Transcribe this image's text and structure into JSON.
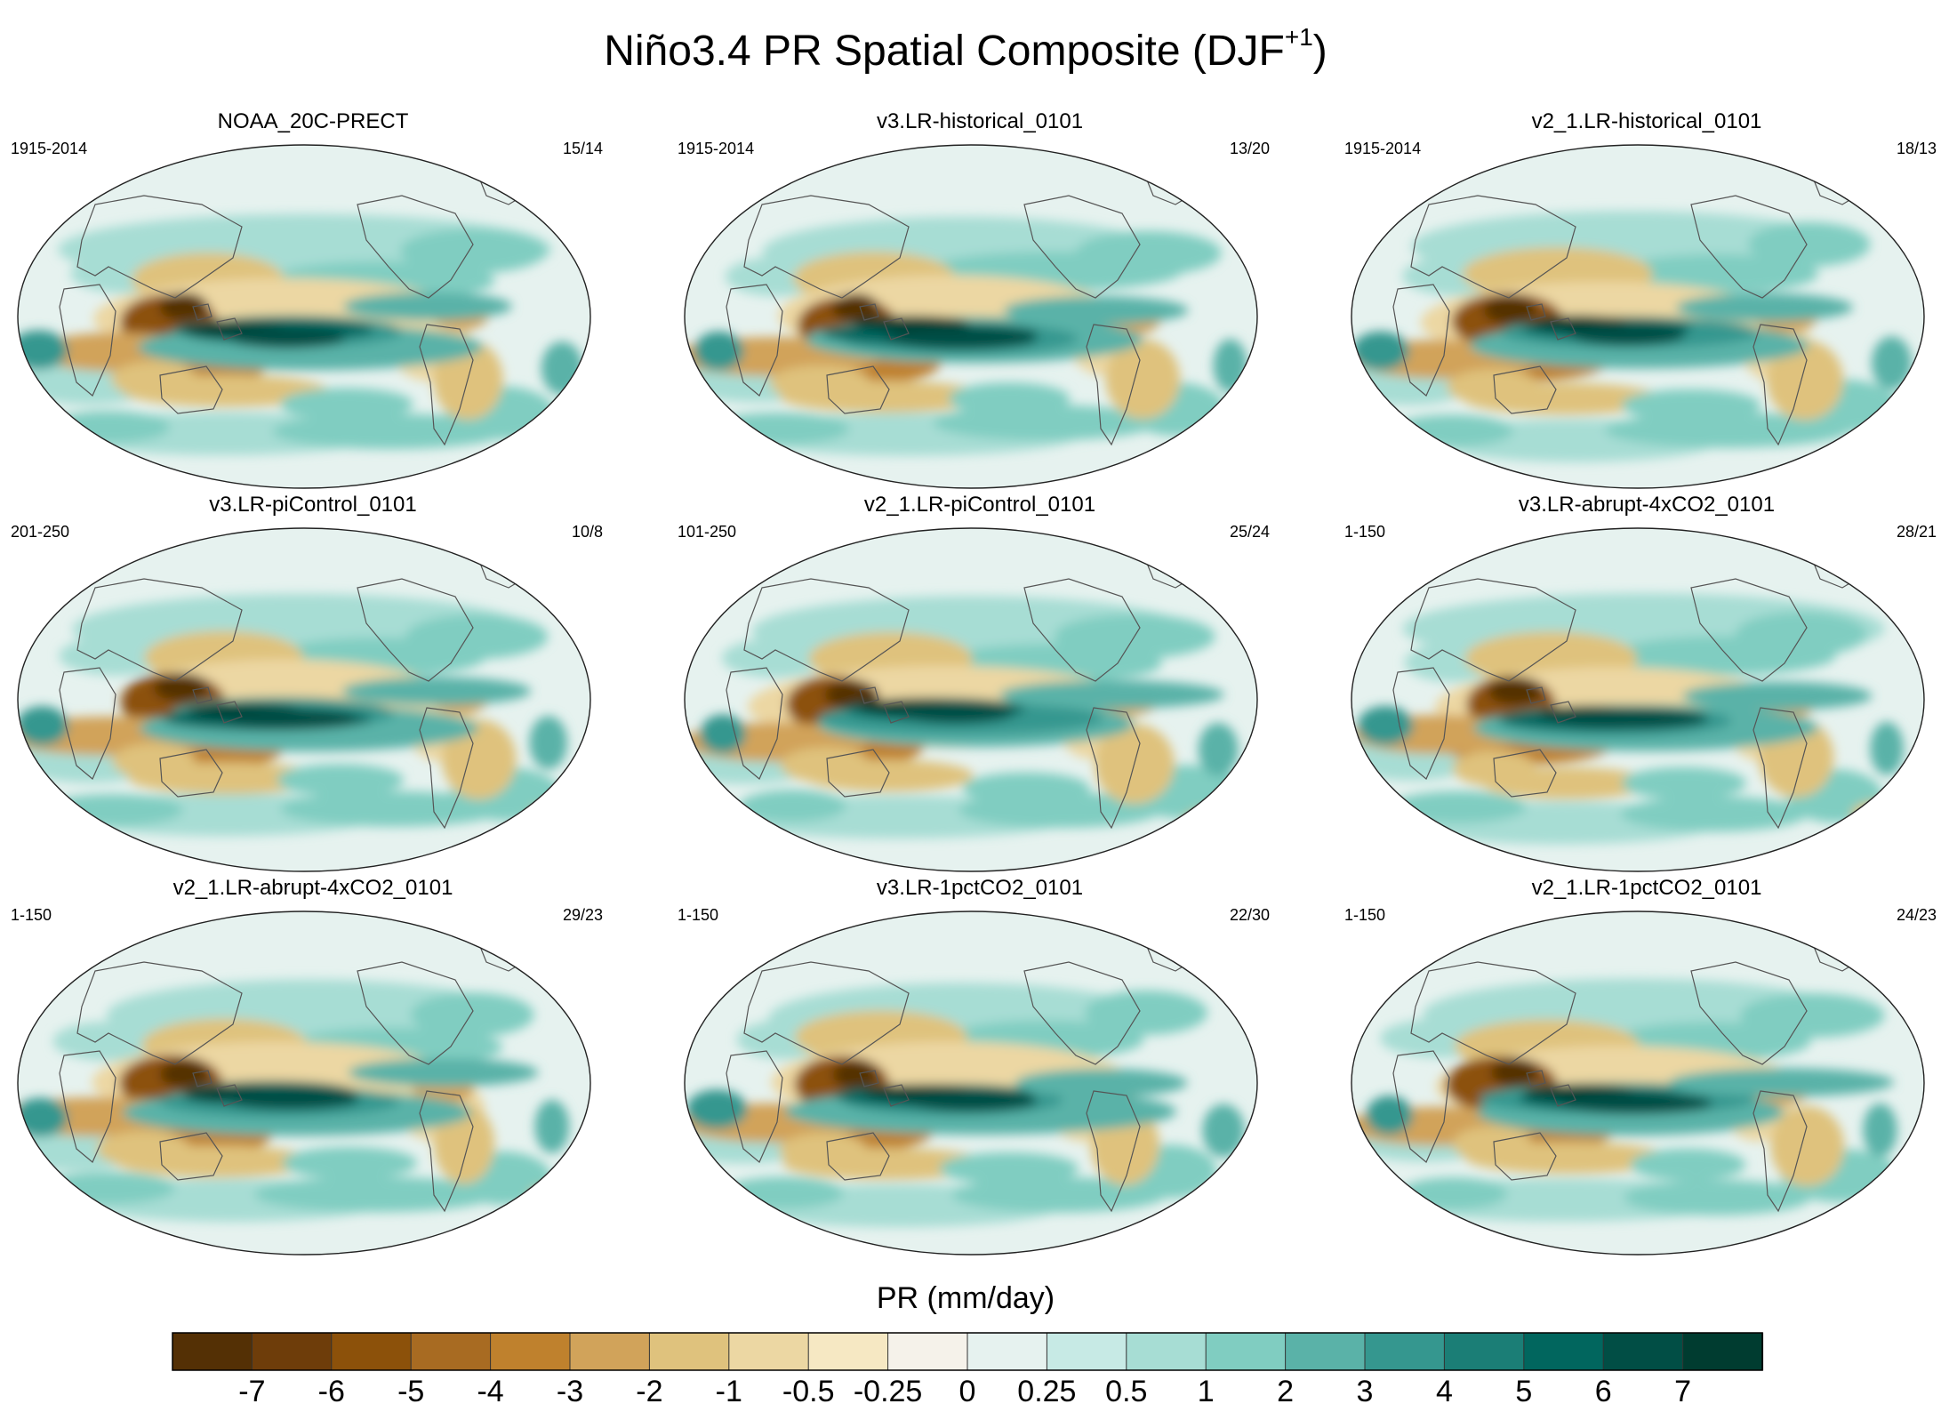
{
  "figure": {
    "title": "Niño3.4 PR Spatial Composite (DJF",
    "title_sup": "+1",
    "title_close": ")"
  },
  "colorbar": {
    "title": "PR (mm/day)",
    "labels": [
      "-7",
      "-6",
      "-5",
      "-4",
      "-3",
      "-2",
      "-1",
      "-0.5",
      "-0.25",
      "0",
      "0.25",
      "0.5",
      "1",
      "2",
      "3",
      "4",
      "5",
      "6",
      "7"
    ],
    "colors": [
      "#543005",
      "#6e3d0a",
      "#8c510a",
      "#a86b22",
      "#bf812d",
      "#d1a35a",
      "#dfc27d",
      "#ecd7a3",
      "#f6e8c3",
      "#f5f2ea",
      "#e6f2ef",
      "#c7eae5",
      "#a7ddd4",
      "#80cdc1",
      "#5ab2a8",
      "#35978f",
      "#1b7e76",
      "#01665e",
      "#014e45",
      "#003c30"
    ]
  },
  "chart_data": [
    {
      "type": "heatmap",
      "title": "NOAA_20C-PRECT",
      "period": "1915-2014",
      "count": "15/14"
    },
    {
      "type": "heatmap",
      "title": "v3.LR-historical_0101",
      "period": "1915-2014",
      "count": "13/20"
    },
    {
      "type": "heatmap",
      "title": "v2_1.LR-historical_0101",
      "period": "1915-2014",
      "count": "18/13"
    },
    {
      "type": "heatmap",
      "title": "v3.LR-piControl_0101",
      "period": "201-250",
      "count": "10/8"
    },
    {
      "type": "heatmap",
      "title": "v2_1.LR-piControl_0101",
      "period": "101-250",
      "count": "25/24"
    },
    {
      "type": "heatmap",
      "title": "v3.LR-abrupt-4xCO2_0101",
      "period": "1-150",
      "count": "28/21"
    },
    {
      "type": "heatmap",
      "title": "v2_1.LR-abrupt-4xCO2_0101",
      "period": "1-150",
      "count": "29/23"
    },
    {
      "type": "heatmap",
      "title": "v3.LR-1pctCO2_0101",
      "period": "1-150",
      "count": "22/30"
    },
    {
      "type": "heatmap",
      "title": "v2_1.LR-1pctCO2_0101",
      "period": "1-150",
      "count": "24/23"
    }
  ]
}
